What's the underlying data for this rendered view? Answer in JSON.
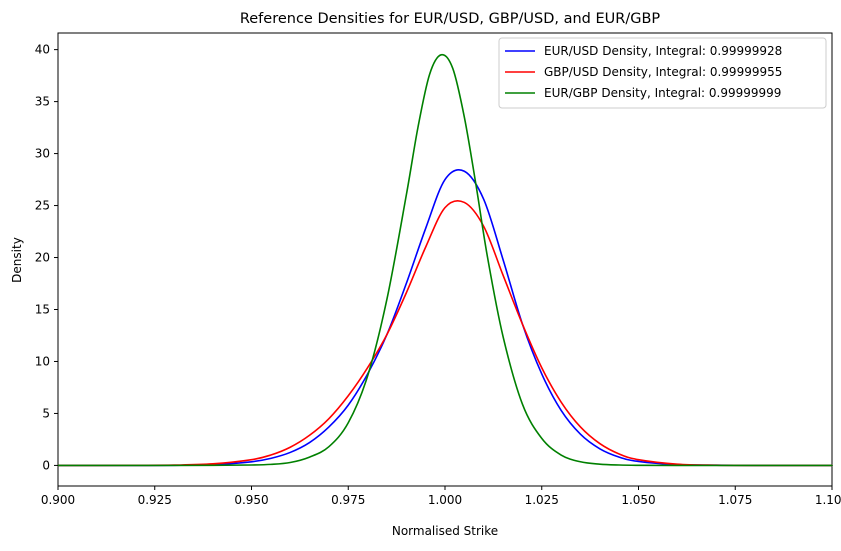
{
  "chart_data": {
    "type": "line",
    "title": "Reference Densities for EUR/USD, GBP/USD, and EUR/GBP",
    "xlabel": "Normalised Strike",
    "ylabel": "Density",
    "xlim": [
      0.9,
      1.1
    ],
    "ylim": [
      -1.98,
      41.6
    ],
    "xticks": [
      0.9,
      0.925,
      0.95,
      0.975,
      1.0,
      1.025,
      1.05,
      1.075,
      1.1
    ],
    "xtick_labels": [
      "0.900",
      "0.925",
      "0.950",
      "0.975",
      "1.000",
      "1.025",
      "1.050",
      "1.075",
      "1.100"
    ],
    "yticks": [
      0,
      5,
      10,
      15,
      20,
      25,
      30,
      35,
      40
    ],
    "ytick_labels": [
      "0",
      "5",
      "10",
      "15",
      "20",
      "25",
      "30",
      "35",
      "40"
    ],
    "grid": false,
    "legend_position": "top-right",
    "series": [
      {
        "name": "EUR/USD Density, Integral: 0.99999928",
        "color": "#0000ff",
        "x": [
          0.9,
          0.91,
          0.92,
          0.93,
          0.94,
          0.95,
          0.955,
          0.96,
          0.965,
          0.97,
          0.975,
          0.98,
          0.985,
          0.99,
          0.995,
          1.0,
          1.005,
          1.01,
          1.015,
          1.02,
          1.025,
          1.03,
          1.035,
          1.04,
          1.045,
          1.05,
          1.06,
          1.07,
          1.08,
          1.09,
          1.1
        ],
        "y": [
          0.0,
          0.0,
          0.0,
          0.01,
          0.08,
          0.35,
          0.68,
          1.25,
          2.2,
          3.7,
          5.8,
          8.8,
          12.6,
          17.5,
          22.8,
          27.5,
          28.3,
          25.6,
          19.8,
          13.6,
          8.8,
          5.3,
          3.0,
          1.6,
          0.8,
          0.38,
          0.08,
          0.02,
          0.0,
          0.0,
          0.0
        ]
      },
      {
        "name": "GBP/USD Density, Integral: 0.99999955",
        "color": "#ff0000",
        "x": [
          0.9,
          0.91,
          0.92,
          0.93,
          0.94,
          0.95,
          0.955,
          0.96,
          0.965,
          0.97,
          0.975,
          0.98,
          0.985,
          0.99,
          0.995,
          1.0,
          1.005,
          1.01,
          1.015,
          1.02,
          1.025,
          1.03,
          1.035,
          1.04,
          1.045,
          1.05,
          1.06,
          1.07,
          1.08,
          1.09,
          1.1
        ],
        "y": [
          0.0,
          0.0,
          0.01,
          0.03,
          0.15,
          0.55,
          1.0,
          1.75,
          2.9,
          4.5,
          6.7,
          9.4,
          12.6,
          16.6,
          21.0,
          24.8,
          25.3,
          23.0,
          18.3,
          13.6,
          9.4,
          6.1,
          3.7,
          2.1,
          1.1,
          0.55,
          0.12,
          0.02,
          0.0,
          0.0,
          0.0
        ]
      },
      {
        "name": "EUR/GBP Density, Integral: 0.99999999",
        "color": "#008000",
        "x": [
          0.9,
          0.92,
          0.94,
          0.95,
          0.955,
          0.96,
          0.965,
          0.97,
          0.975,
          0.98,
          0.985,
          0.99,
          0.993,
          0.996,
          0.999,
          1.002,
          1.005,
          1.008,
          1.011,
          1.015,
          1.02,
          1.025,
          1.03,
          1.035,
          1.04,
          1.045,
          1.05,
          1.06,
          1.08,
          1.1
        ],
        "y": [
          0.0,
          0.0,
          0.01,
          0.04,
          0.1,
          0.28,
          0.8,
          1.8,
          4.1,
          8.6,
          16.0,
          26.0,
          32.5,
          37.6,
          39.5,
          38.2,
          33.5,
          27.0,
          20.0,
          12.4,
          5.9,
          2.6,
          1.0,
          0.35,
          0.12,
          0.04,
          0.01,
          0.0,
          0.0,
          0.0
        ]
      }
    ]
  }
}
